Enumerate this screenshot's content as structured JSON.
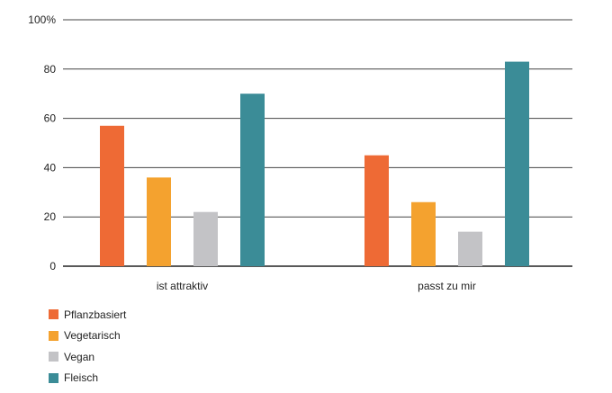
{
  "chart_data": {
    "type": "bar",
    "title": "",
    "xlabel": "",
    "ylabel": "",
    "ylim": [
      0,
      100
    ],
    "y_ticks": [
      "0",
      "20",
      "40",
      "60",
      "80",
      "100%"
    ],
    "categories": [
      "ist attraktiv",
      "passt zu mir"
    ],
    "grid": true,
    "legend_position": "bottom-left",
    "series": [
      {
        "name": "Pflanzbasiert",
        "color": "#ee6a35",
        "values": [
          57,
          45
        ]
      },
      {
        "name": "Vegetarisch",
        "color": "#f4a22f",
        "values": [
          36,
          26
        ]
      },
      {
        "name": "Vegan",
        "color": "#c3c3c6",
        "values": [
          22,
          14
        ]
      },
      {
        "name": "Fleisch",
        "color": "#3b8c97",
        "values": [
          70,
          83
        ]
      }
    ]
  }
}
